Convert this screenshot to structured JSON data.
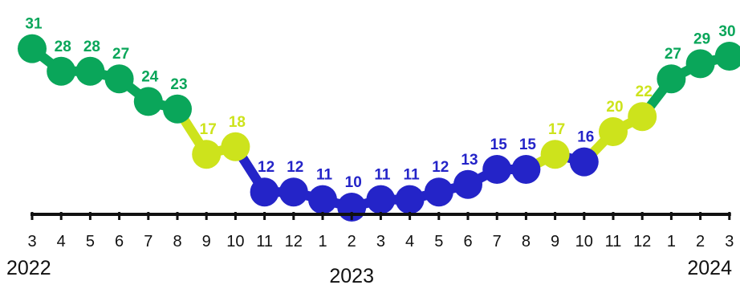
{
  "chart_data": {
    "type": "line",
    "x": [
      "3",
      "4",
      "5",
      "6",
      "7",
      "8",
      "9",
      "10",
      "11",
      "12",
      "1",
      "2",
      "3",
      "4",
      "5",
      "6",
      "7",
      "8",
      "9",
      "10",
      "11",
      "12",
      "1",
      "2",
      "3"
    ],
    "values": [
      31,
      28,
      28,
      27,
      24,
      23,
      17,
      18,
      12,
      12,
      11,
      10,
      11,
      11,
      12,
      13,
      15,
      15,
      17,
      16,
      20,
      22,
      27,
      29,
      30
    ],
    "year_labels": [
      "2022",
      "2023",
      "2024"
    ],
    "colors": {
      "high": "#0aa65a",
      "mid": "#cde31c",
      "low": "#2424c8",
      "axis": "#111111"
    },
    "grid": false,
    "legend": "none"
  }
}
